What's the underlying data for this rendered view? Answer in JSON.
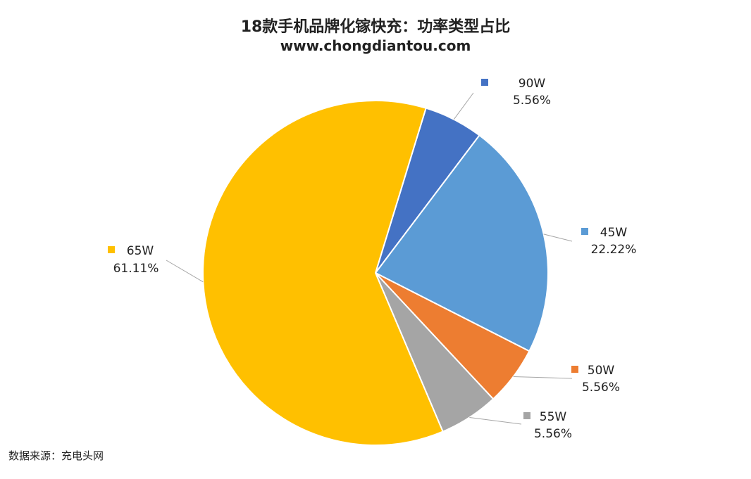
{
  "chart_data": {
    "type": "pie",
    "title": "18款手机品牌化镓快充：功率类型占比",
    "subtitle": "www.chongdiantou.com",
    "source": "数据来源：充电头网",
    "slices": [
      {
        "label": "90W",
        "value": 5.56,
        "value_label": "5.56%",
        "color": "#4472C4"
      },
      {
        "label": "45W",
        "value": 22.22,
        "value_label": "22.22%",
        "color": "#5B9BD5"
      },
      {
        "label": "50W",
        "value": 5.56,
        "value_label": "5.56%",
        "color": "#ED7D31"
      },
      {
        "label": "55W",
        "value": 5.56,
        "value_label": "5.56%",
        "color": "#A5A5A5"
      },
      {
        "label": "65W",
        "value": 61.11,
        "value_label": "61.11%",
        "color": "#FFC000"
      }
    ],
    "start_angle_deg": 17,
    "direction": "clockwise",
    "legend": "none (category names shown as data labels with leader lines)"
  }
}
